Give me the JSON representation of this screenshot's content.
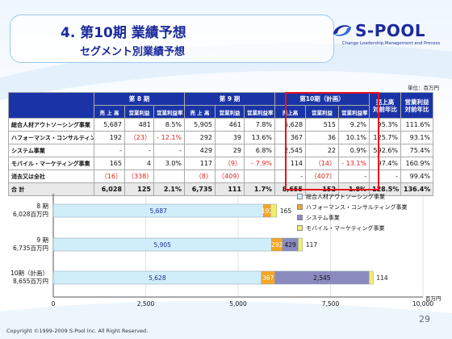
{
  "header": {
    "title": "4. 第10期 業績予想",
    "subtitle": "セグメント別業績予想"
  },
  "logo": {
    "name": "S-POOL",
    "tagline": "Change Leadership,Management and Process"
  },
  "unit_label": "単位：百万円",
  "table": {
    "period_headers": [
      "第 8 期",
      "第 9 期",
      "第10期（計画）"
    ],
    "ratio_headers": [
      "売上高\n対前年比",
      "営業利益\n対前年比"
    ],
    "sub_headers": [
      "売 上 高",
      "営業利益",
      "営業利益率",
      "売 上 高",
      "営業利益",
      "営業利益率",
      "売上高",
      "営業利益",
      "営業利益率"
    ],
    "rows": [
      {
        "label": "総合人材アウトソーシング事業",
        "cells": [
          "5,687",
          "481",
          "8.5%",
          "5,905",
          "461",
          "7.8%",
          "5,628",
          "515",
          "9.2%",
          "95.3%",
          "111.6%"
        ]
      },
      {
        "label": "ハフォーマンス・コンサルティング事業",
        "cells": [
          "192",
          "（23）",
          "- 12.1%",
          "292",
          "39",
          "13.6%",
          "367",
          "36",
          "10.1%",
          "125.7%",
          "93.1%"
        ]
      },
      {
        "label": "システム事業",
        "cells": [
          "-",
          "-",
          "-",
          "429",
          "29",
          "6.8%",
          "2,545",
          "22",
          "0.9%",
          "592.6%",
          "75.4%"
        ]
      },
      {
        "label": "モバイル・マーケティング事業",
        "cells": [
          "165",
          "4",
          "3.0%",
          "117",
          "（9）",
          "- 7.9%",
          "114",
          "（14）",
          "- 13.1%",
          "97.4%",
          "160.9%"
        ]
      },
      {
        "label": "消去又は全社",
        "cells": [
          "（16）",
          "（338）",
          "",
          "（8）",
          "（409）",
          "",
          "-",
          "（407）",
          "-",
          "-",
          "99.4%"
        ]
      }
    ],
    "total": {
      "label": "合 計",
      "cells": [
        "6,028",
        "125",
        "2.1%",
        "6,735",
        "111",
        "1.7%",
        "8,655",
        "152",
        "1.8%",
        "128.5%",
        "136.4%"
      ]
    }
  },
  "chart_data": {
    "type": "bar",
    "orientation": "horizontal",
    "stacked": true,
    "categories": [
      {
        "line1": "8 期",
        "line2": "6,028百万円"
      },
      {
        "line1": "9 期",
        "line2": "6,735百万円"
      },
      {
        "line1": "10期（計画）",
        "line2": "8,655百万円"
      }
    ],
    "series": [
      {
        "name": "総合人材アウトソーシング事業",
        "color": "#cfeefa",
        "values": [
          5687,
          5905,
          5628
        ],
        "labels": [
          "5,687",
          "5,905",
          "5,628"
        ]
      },
      {
        "name": "ハフォーマンス・コンサルティング事業",
        "color": "#f5a623",
        "values": [
          192,
          292,
          367
        ],
        "labels": [
          "192",
          "292",
          "367"
        ]
      },
      {
        "name": "システム事業",
        "color": "#8a8abf",
        "values": [
          0,
          429,
          2545
        ],
        "labels": [
          "",
          "429",
          "2,545"
        ]
      },
      {
        "name": "モバイル・マーケティング事業",
        "color": "#f2ee6a",
        "values": [
          165,
          117,
          114
        ],
        "labels": [
          "165",
          "117",
          "114"
        ]
      }
    ],
    "xlim": [
      0,
      10000
    ],
    "xticks": [
      "0",
      "2,500",
      "5,000",
      "7,500",
      "10,000"
    ],
    "xtick_values": [
      0,
      2500,
      5000,
      7500,
      10000
    ],
    "x_unit": "百万円",
    "gridlines": true,
    "legend": "top-right"
  },
  "footer": {
    "copyright": "Copyright ©1999-2009 S-Pool Inc. All Right Reserved.",
    "page": "29"
  }
}
